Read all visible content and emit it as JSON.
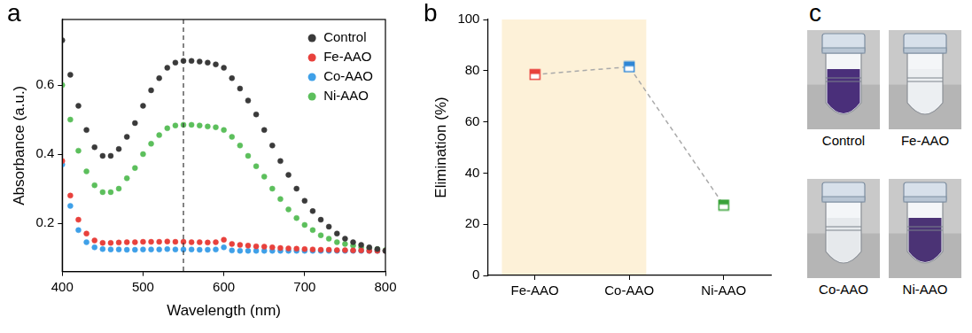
{
  "chart_data": [
    {
      "panel": "a",
      "type": "scatter",
      "x_label": "Wavelength (nm)",
      "y_label": "Absorbance (a.u.)",
      "x": [
        400,
        410,
        420,
        430,
        440,
        450,
        460,
        470,
        480,
        490,
        500,
        510,
        520,
        530,
        540,
        550,
        560,
        570,
        580,
        590,
        600,
        610,
        620,
        630,
        640,
        650,
        660,
        670,
        680,
        690,
        700,
        710,
        720,
        730,
        740,
        750,
        760,
        770,
        780,
        790,
        800
      ],
      "series": [
        {
          "name": "Control",
          "color": "#3a3a3a",
          "values": [
            0.73,
            0.63,
            0.54,
            0.47,
            0.42,
            0.395,
            0.395,
            0.415,
            0.45,
            0.49,
            0.54,
            0.585,
            0.62,
            0.65,
            0.665,
            0.67,
            0.67,
            0.668,
            0.665,
            0.66,
            0.65,
            0.62,
            0.59,
            0.555,
            0.515,
            0.47,
            0.425,
            0.38,
            0.34,
            0.3,
            0.265,
            0.235,
            0.21,
            0.19,
            0.17,
            0.155,
            0.145,
            0.137,
            0.13,
            0.125,
            0.12
          ]
        },
        {
          "name": "Fe-AAO",
          "color": "#e8413c",
          "values": [
            0.38,
            0.28,
            0.21,
            0.17,
            0.15,
            0.143,
            0.143,
            0.144,
            0.145,
            0.145,
            0.146,
            0.146,
            0.146,
            0.147,
            0.146,
            0.146,
            0.145,
            0.145,
            0.144,
            0.145,
            0.152,
            0.14,
            0.137,
            0.135,
            0.133,
            0.132,
            0.13,
            0.128,
            0.127,
            0.126,
            0.125,
            0.124,
            0.123,
            0.123,
            0.122,
            0.122,
            0.121,
            0.121,
            0.12,
            0.12,
            0.12
          ]
        },
        {
          "name": "Co-AAO",
          "color": "#3fa0e8",
          "values": [
            0.37,
            0.25,
            0.18,
            0.145,
            0.13,
            0.125,
            0.124,
            0.124,
            0.123,
            0.123,
            0.124,
            0.124,
            0.124,
            0.125,
            0.124,
            0.124,
            0.124,
            0.123,
            0.123,
            0.124,
            0.13,
            0.121,
            0.12,
            0.12,
            0.12,
            0.12,
            0.12,
            0.12,
            0.12,
            0.12,
            0.12,
            0.12,
            0.12,
            0.12,
            0.12,
            0.12,
            0.12,
            0.12,
            0.12,
            0.12,
            0.12
          ]
        },
        {
          "name": "Ni-AAO",
          "color": "#5cbf5c",
          "values": [
            0.6,
            0.5,
            0.41,
            0.35,
            0.31,
            0.29,
            0.29,
            0.3,
            0.33,
            0.36,
            0.4,
            0.43,
            0.455,
            0.475,
            0.483,
            0.485,
            0.485,
            0.483,
            0.48,
            0.478,
            0.47,
            0.45,
            0.425,
            0.395,
            0.365,
            0.335,
            0.3,
            0.27,
            0.24,
            0.215,
            0.195,
            0.18,
            0.165,
            0.155,
            0.145,
            0.14,
            0.135,
            0.13,
            0.127,
            0.125,
            0.122
          ]
        }
      ],
      "xlim": [
        400,
        800
      ],
      "xticks": [
        400,
        500,
        600,
        700,
        800
      ],
      "ylim": [
        0.06,
        0.79
      ],
      "yticks": [
        0.2,
        0.4,
        0.6
      ],
      "reference_x": 550,
      "marker": "circle",
      "legend": "upper right",
      "grid": false
    },
    {
      "panel": "b",
      "type": "line",
      "y_label": "Elimination (%)",
      "categories": [
        "Fe-AAO",
        "Co-AAO",
        "Ni-AAO"
      ],
      "values": [
        78.5,
        81.5,
        27.5
      ],
      "colors": [
        "#e8413c",
        "#2f86d6",
        "#3aa33a"
      ],
      "color": "#aaaaaa",
      "line_style": "dashed",
      "marker": "square",
      "highlight": [
        "Fe-AAO",
        "Co-AAO"
      ],
      "ylim": [
        0,
        100
      ],
      "yticks": [
        0,
        20,
        40,
        60,
        80,
        100
      ],
      "grid": false
    }
  ],
  "photos": {
    "panel": "c",
    "items": [
      {
        "label": "Control",
        "color": "#4a2f7a"
      },
      {
        "label": "Fe-AAO",
        "color": "#eceff2"
      },
      {
        "label": "Co-AAO",
        "color": "#e6e9ec"
      },
      {
        "label": "Ni-AAO",
        "color": "#4b3375"
      }
    ]
  }
}
